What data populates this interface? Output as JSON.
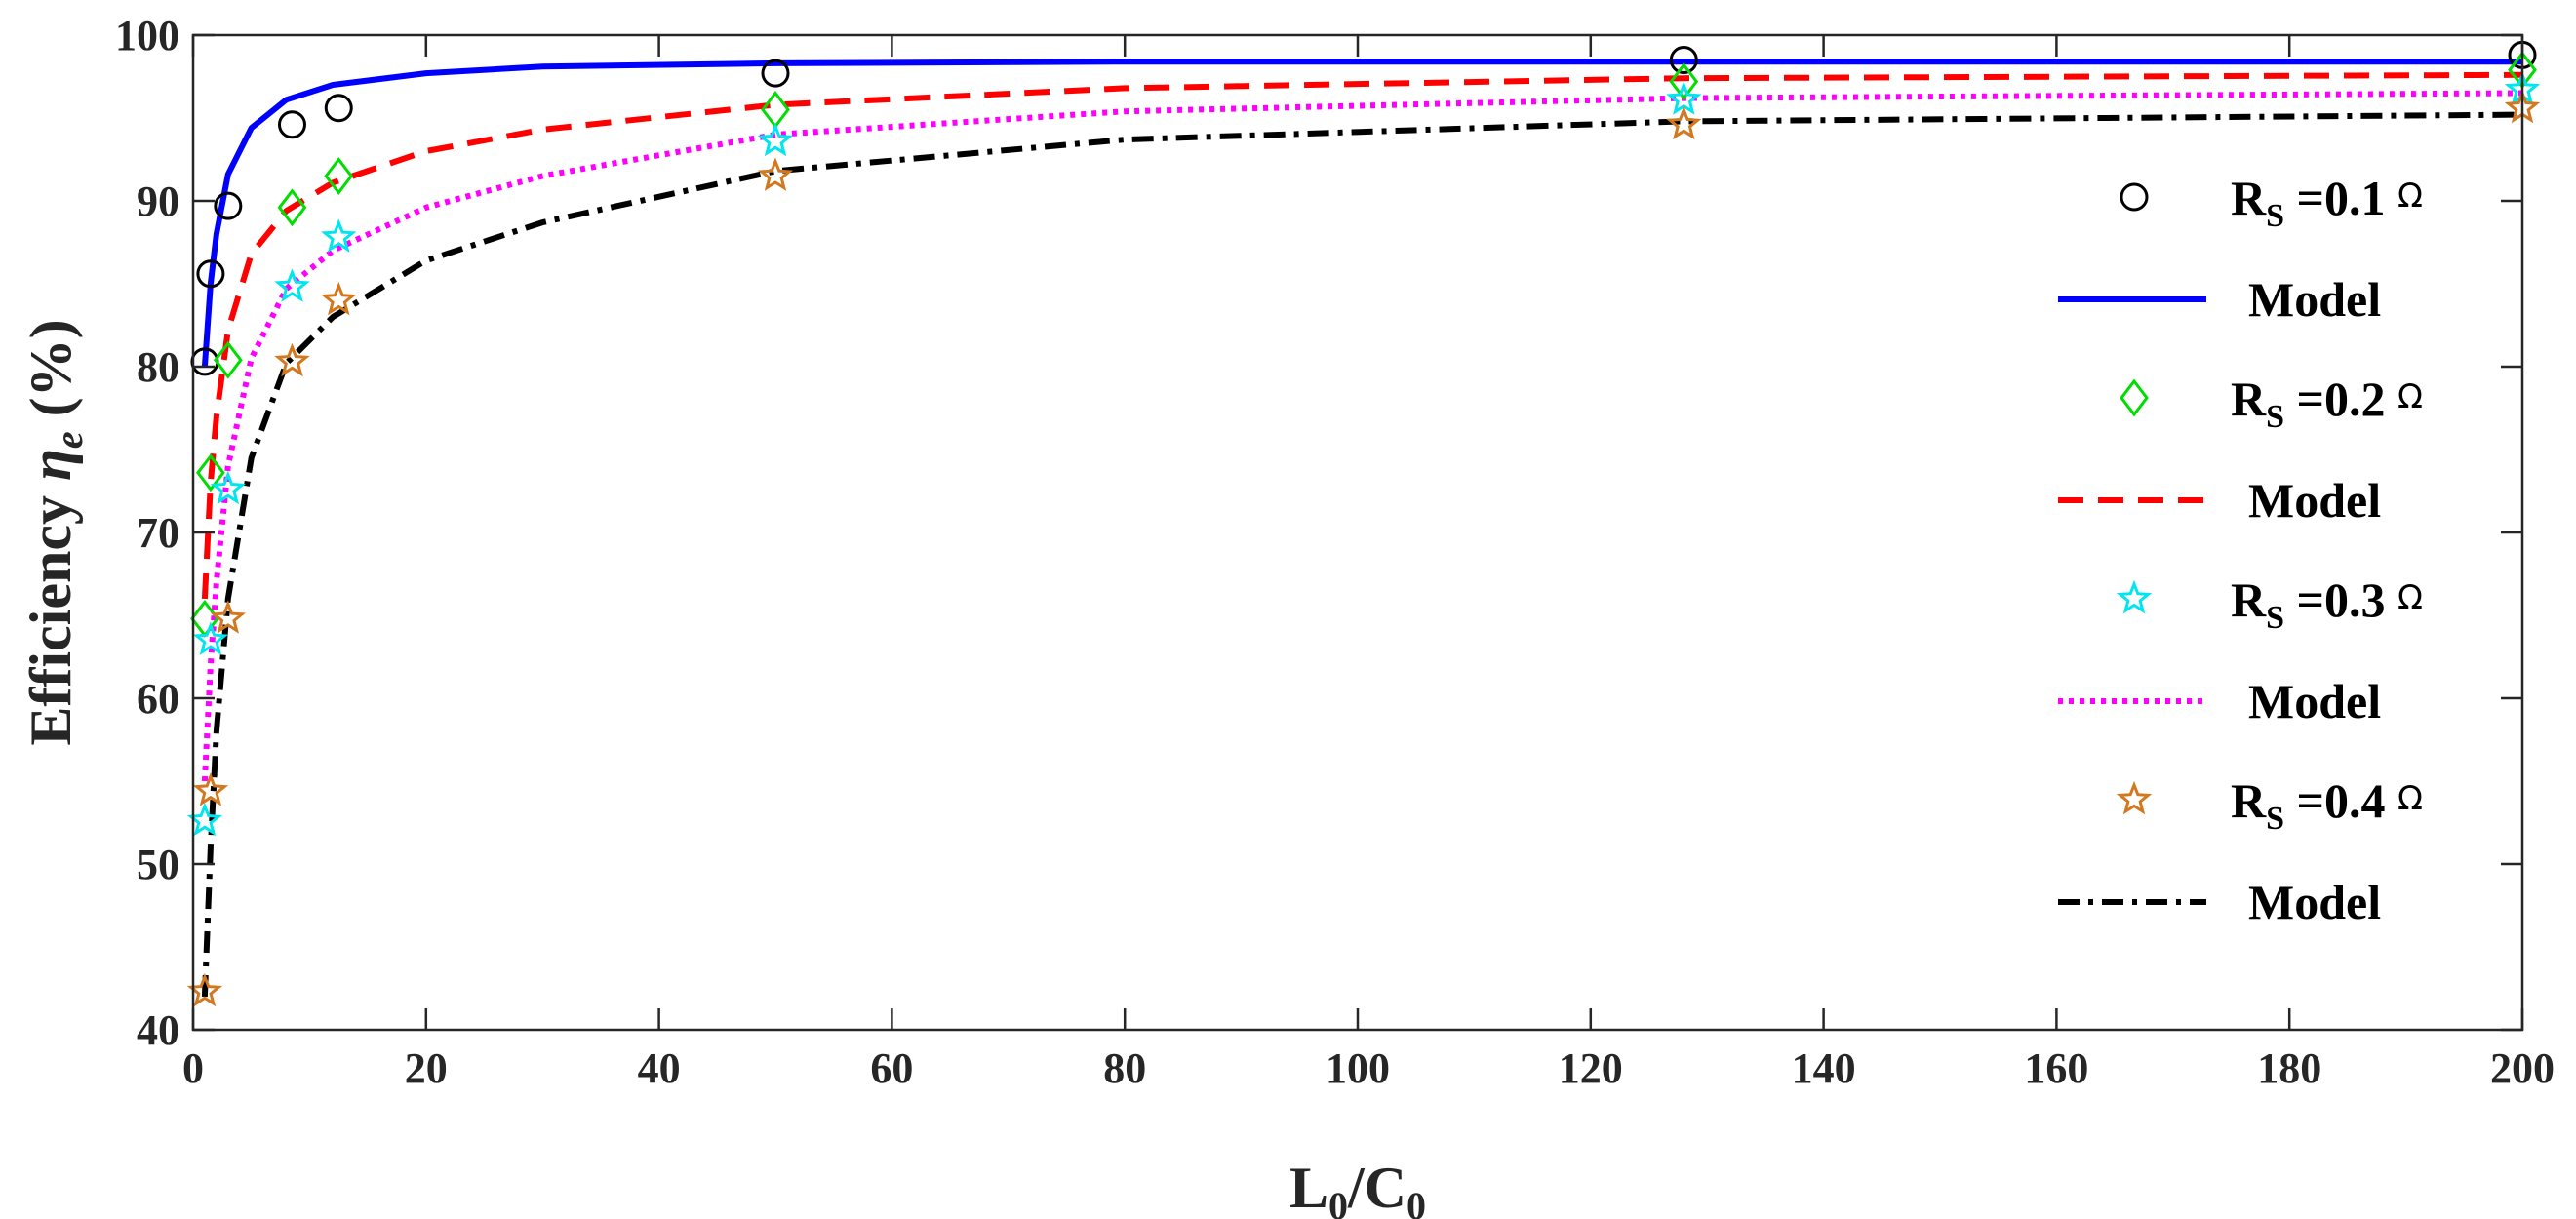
{
  "chart_data": {
    "type": "line",
    "title": "",
    "xlabel": {
      "main": "L",
      "sub0": "0",
      "slash": "/C",
      "sub1": "0"
    },
    "ylabel": {
      "prefix": "Efficiency ",
      "symbol": "η",
      "sub": "e",
      "suffix": " (%)"
    },
    "xlim": [
      0,
      200
    ],
    "ylim": [
      40,
      100
    ],
    "xticks": [
      "0",
      "20",
      "40",
      "60",
      "80",
      "100",
      "120",
      "140",
      "160",
      "180",
      "200"
    ],
    "yticks": [
      "40",
      "50",
      "60",
      "70",
      "80",
      "90",
      "100"
    ],
    "grid": false,
    "legend_position": "right",
    "measured": [
      {
        "name": "R_S =0.1 Ω",
        "label_main": "R",
        "label_sub": "S",
        "label_value": " =0.1 ",
        "label_unit": "Ω",
        "marker": "circle",
        "color": "#000000",
        "x": [
          1,
          1.5,
          3,
          8.5,
          12.5,
          50,
          128,
          200
        ],
        "y": [
          80.3,
          85.6,
          89.7,
          94.6,
          95.6,
          97.7,
          98.5,
          98.8
        ]
      },
      {
        "name": "R_S =0.2 Ω",
        "label_main": "R",
        "label_sub": "S",
        "label_value": " =0.2 ",
        "label_unit": "Ω",
        "marker": "diamond",
        "color": "#00dd00",
        "x": [
          1,
          1.5,
          3,
          8.5,
          12.5,
          50,
          128,
          200
        ],
        "y": [
          64.8,
          73.6,
          80.4,
          89.6,
          91.5,
          95.5,
          97.2,
          97.9
        ]
      },
      {
        "name": "R_S =0.3 Ω",
        "label_main": "R",
        "label_sub": "S",
        "label_value": " =0.3 ",
        "label_unit": "Ω",
        "marker": "star",
        "color": "#00e5ee",
        "x": [
          1,
          1.5,
          3,
          8.5,
          12.5,
          50,
          128,
          200
        ],
        "y": [
          52.6,
          63.5,
          72.6,
          84.8,
          87.8,
          93.6,
          96.1,
          96.7
        ]
      },
      {
        "name": "R_S =0.4 Ω",
        "label_main": "R",
        "label_sub": "S",
        "label_value": " =0.4 ",
        "label_unit": "Ω",
        "marker": "star",
        "color": "#d2781e",
        "x": [
          1,
          1.5,
          3,
          8.5,
          12.5,
          50,
          128,
          200
        ],
        "y": [
          42.3,
          54.4,
          64.8,
          80.3,
          84.0,
          91.5,
          94.6,
          95.6
        ]
      }
    ],
    "models": [
      {
        "name": "Model",
        "for": "R_S =0.1 Ω",
        "color": "#0000ff",
        "dash": "solid",
        "x": [
          1,
          1.5,
          2,
          3,
          5,
          8,
          12,
          20,
          30,
          50,
          80,
          128,
          200
        ],
        "y": [
          80.0,
          85.0,
          88.0,
          91.6,
          94.4,
          96.1,
          97.0,
          97.7,
          98.1,
          98.3,
          98.4,
          98.4,
          98.4
        ]
      },
      {
        "name": "Model",
        "for": "R_S =0.2 Ω",
        "color": "#ff0000",
        "dash": "dashed",
        "x": [
          1,
          1.5,
          2,
          3,
          5,
          8,
          12,
          20,
          30,
          50,
          80,
          128,
          200
        ],
        "y": [
          66.0,
          73.0,
          77.0,
          82.2,
          86.8,
          89.4,
          91.1,
          93.0,
          94.3,
          95.8,
          96.8,
          97.4,
          97.6
        ]
      },
      {
        "name": "Model",
        "for": "R_S =0.3 Ω",
        "color": "#ff00ff",
        "dash": "dotted",
        "x": [
          1,
          1.5,
          2,
          3,
          5,
          8,
          12,
          20,
          30,
          50,
          80,
          128,
          200
        ],
        "y": [
          55.0,
          62.0,
          67.0,
          74.0,
          80.5,
          84.7,
          87.0,
          89.6,
          91.5,
          94.0,
          95.4,
          96.2,
          96.5
        ]
      },
      {
        "name": "Model",
        "for": "R_S =0.4 Ω",
        "color": "#000000",
        "dash": "dashdot",
        "x": [
          1,
          1.5,
          2,
          3,
          5,
          8,
          12,
          20,
          30,
          50,
          80,
          128,
          200
        ],
        "y": [
          42.0,
          51.0,
          58.0,
          66.0,
          74.5,
          80.2,
          83.0,
          86.4,
          88.7,
          91.8,
          93.7,
          94.8,
          95.2
        ]
      }
    ],
    "legend": [
      {
        "kind": "marker",
        "series": 0
      },
      {
        "kind": "line",
        "series": 0,
        "label": "Model"
      },
      {
        "kind": "marker",
        "series": 1
      },
      {
        "kind": "line",
        "series": 1,
        "label": "Model"
      },
      {
        "kind": "marker",
        "series": 2
      },
      {
        "kind": "line",
        "series": 2,
        "label": "Model"
      },
      {
        "kind": "marker",
        "series": 3
      },
      {
        "kind": "line",
        "series": 3,
        "label": "Model"
      }
    ]
  }
}
